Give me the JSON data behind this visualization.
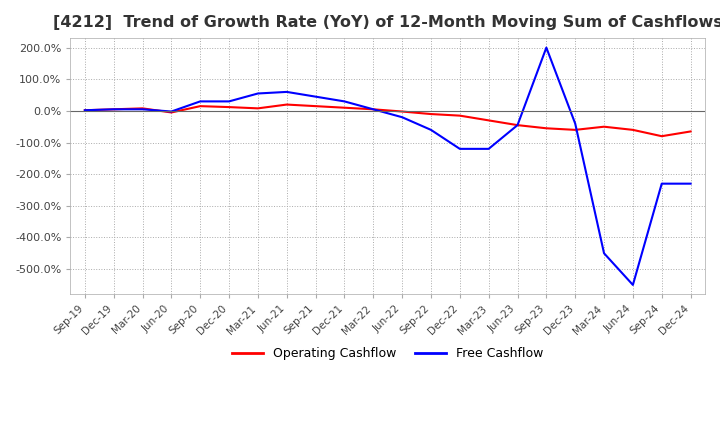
{
  "title": "[4212]  Trend of Growth Rate (YoY) of 12-Month Moving Sum of Cashflows",
  "title_fontsize": 11.5,
  "background_color": "#ffffff",
  "grid_color": "#aaaaaa",
  "grid_style": "dotted",
  "ylim": [
    -580,
    230
  ],
  "yticks": [
    200,
    100,
    0,
    -100,
    -200,
    -300,
    -400,
    -500
  ],
  "legend_labels": [
    "Operating Cashflow",
    "Free Cashflow"
  ],
  "legend_colors": [
    "#ff0000",
    "#0000ff"
  ],
  "x_labels": [
    "Sep-19",
    "Dec-19",
    "Mar-20",
    "Jun-20",
    "Sep-20",
    "Dec-20",
    "Mar-21",
    "Jun-21",
    "Sep-21",
    "Dec-21",
    "Mar-22",
    "Jun-22",
    "Sep-22",
    "Dec-22",
    "Mar-23",
    "Jun-23",
    "Sep-23",
    "Dec-23",
    "Mar-24",
    "Jun-24",
    "Sep-24",
    "Dec-24"
  ],
  "operating_cashflow": [
    2,
    5,
    8,
    -5,
    15,
    12,
    8,
    20,
    15,
    10,
    5,
    -2,
    -10,
    -15,
    -30,
    -45,
    -55,
    -60,
    -50,
    -60,
    -80,
    -65
  ],
  "free_cashflow": [
    2,
    5,
    5,
    -2,
    30,
    30,
    55,
    60,
    45,
    30,
    5,
    -20,
    -60,
    -120,
    -120,
    -45,
    200,
    -40,
    -450,
    -550,
    -230,
    -230
  ]
}
